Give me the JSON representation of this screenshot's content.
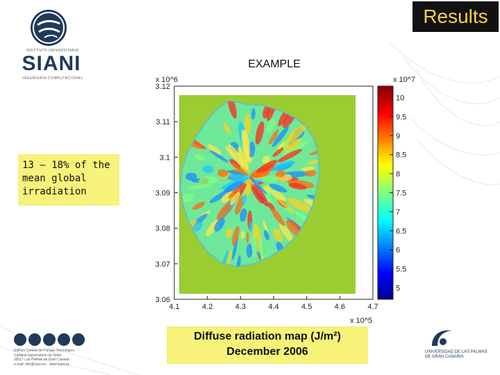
{
  "header": {
    "badge": "Results",
    "subtitle": "EXAMPLE"
  },
  "logo": {
    "top_text": "INSTITUTO UNIVERSITARIO",
    "name": "SIANI",
    "tagline": "INGENIERÍA COMPUTACIONAL"
  },
  "note": {
    "line1": "13 – 18% of the",
    "line2": "mean global",
    "line3": "irradiation"
  },
  "caption": {
    "line1": "Diffuse radiation map (J/m²)",
    "line2": "December 2006"
  },
  "footer_left": {
    "lines": [
      "Edificio Central del Parque Tecnológico",
      "Campus Universitario de Tafira",
      "35017 Las Palmas de Gran Canaria",
      "e-mail: info@siani.es · www.siani.es"
    ]
  },
  "footer_right": {
    "line1": "UNIVERSIDAD DE LAS PALMAS",
    "line2": "DE GRAN CANARIA"
  },
  "colors": {
    "badge_bg": "#111111",
    "badge_text": "#f5d24a",
    "highlight": "#f6f27a",
    "brand": "#1f3a5a"
  },
  "chart_data": {
    "type": "heatmap",
    "title": "",
    "x_exponent": "x 10^5",
    "y_exponent": "x 10^6",
    "colorbar_exponent": "x 10^7",
    "x_ticks": [
      "4.1",
      "4.2",
      "4.3",
      "4.4",
      "4.5",
      "4.6",
      "4.7"
    ],
    "y_ticks": [
      "3.06",
      "3.07",
      "3.08",
      "3.09",
      "3.1",
      "3.11",
      "3.12"
    ],
    "colorbar_ticks": [
      "5",
      "5.5",
      "6",
      "6.5",
      "7",
      "7.5",
      "8",
      "8.5",
      "9",
      "9.5",
      "10"
    ],
    "xlim": [
      4.1,
      4.7
    ],
    "ylim": [
      3.06,
      3.12
    ],
    "clim": [
      4.7,
      10.3
    ],
    "colormap": "jet"
  }
}
